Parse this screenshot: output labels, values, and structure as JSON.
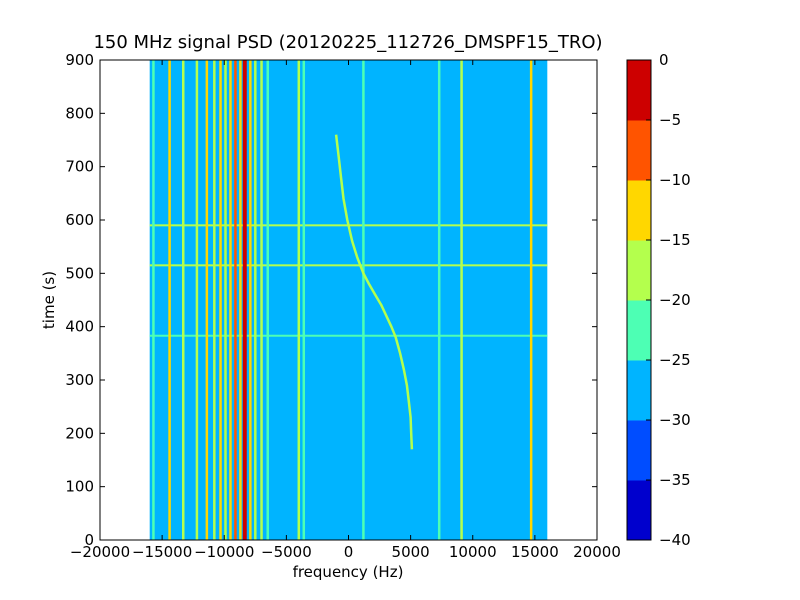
{
  "chart_data": {
    "type": "heatmap",
    "title": "150 MHz signal PSD (20120225_112726_DMSPF15_TRO)",
    "xlabel": "frequency (Hz)",
    "ylabel": "time (s)",
    "xlim": [
      -20000,
      20000
    ],
    "ylim": [
      0,
      900
    ],
    "x_ticks": [
      -20000,
      -15000,
      -10000,
      -5000,
      0,
      5000,
      10000,
      15000,
      20000
    ],
    "x_tick_labels": [
      "−20000",
      "−15000",
      "−10000",
      "−5000",
      "0",
      "5000",
      "10000",
      "15000",
      "20000"
    ],
    "y_ticks": [
      0,
      100,
      200,
      300,
      400,
      500,
      600,
      700,
      800,
      900
    ],
    "y_tick_labels": [
      "0",
      "100",
      "200",
      "300",
      "400",
      "500",
      "600",
      "700",
      "800",
      "900"
    ],
    "data_extent_x": [
      -16000,
      16000
    ],
    "background_level": -27.5,
    "colorbar": {
      "levels": [
        -40,
        -35,
        -30,
        -25,
        -20,
        -15,
        -10,
        -5,
        0
      ],
      "tick_labels": [
        "−40",
        "−35",
        "−30",
        "−25",
        "−20",
        "−15",
        "−10",
        "−5",
        "0"
      ],
      "colors": [
        "#0000cd",
        "#004dff",
        "#00b4ff",
        "#4dffb4",
        "#b4ff4d",
        "#ffd700",
        "#ff5400",
        "#cd0000"
      ]
    },
    "vertical_lines": [
      {
        "freq": -15700,
        "level": -22
      },
      {
        "freq": -14400,
        "level": -12
      },
      {
        "freq": -13300,
        "level": -17
      },
      {
        "freq": -12200,
        "level": -17
      },
      {
        "freq": -11400,
        "level": -12
      },
      {
        "freq": -10800,
        "level": -17
      },
      {
        "freq": -10300,
        "level": -12
      },
      {
        "freq": -9900,
        "level": -17
      },
      {
        "freq": -9500,
        "level": -12
      },
      {
        "freq": -9100,
        "level": -8
      },
      {
        "freq": -8700,
        "level": -12
      },
      {
        "freq": -8350,
        "level": -2
      },
      {
        "freq": -7900,
        "level": -12
      },
      {
        "freq": -7500,
        "level": -17
      },
      {
        "freq": -7000,
        "level": -17
      },
      {
        "freq": -6500,
        "level": -22
      },
      {
        "freq": -4000,
        "level": -17
      },
      {
        "freq": -3600,
        "level": -22
      },
      {
        "freq": 1200,
        "level": -22
      },
      {
        "freq": 7300,
        "level": -22
      },
      {
        "freq": 9100,
        "level": -17
      },
      {
        "freq": 14700,
        "level": -12
      }
    ],
    "horizontal_lines": [
      {
        "time": 590,
        "level": -17
      },
      {
        "time": 515,
        "level": -17
      },
      {
        "time": 383,
        "level": -22
      }
    ],
    "doppler_trace": {
      "level": -17,
      "points": [
        {
          "t": 760,
          "f": -1000
        },
        {
          "t": 720,
          "f": -800
        },
        {
          "t": 680,
          "f": -600
        },
        {
          "t": 640,
          "f": -400
        },
        {
          "t": 600,
          "f": -100
        },
        {
          "t": 560,
          "f": 300
        },
        {
          "t": 530,
          "f": 700
        },
        {
          "t": 500,
          "f": 1200
        },
        {
          "t": 480,
          "f": 1650
        },
        {
          "t": 460,
          "f": 2150
        },
        {
          "t": 440,
          "f": 2650
        },
        {
          "t": 420,
          "f": 3050
        },
        {
          "t": 400,
          "f": 3450
        },
        {
          "t": 380,
          "f": 3800
        },
        {
          "t": 350,
          "f": 4150
        },
        {
          "t": 320,
          "f": 4450
        },
        {
          "t": 290,
          "f": 4700
        },
        {
          "t": 260,
          "f": 4850
        },
        {
          "t": 230,
          "f": 5000
        },
        {
          "t": 200,
          "f": 5050
        },
        {
          "t": 170,
          "f": 5100
        }
      ]
    }
  }
}
